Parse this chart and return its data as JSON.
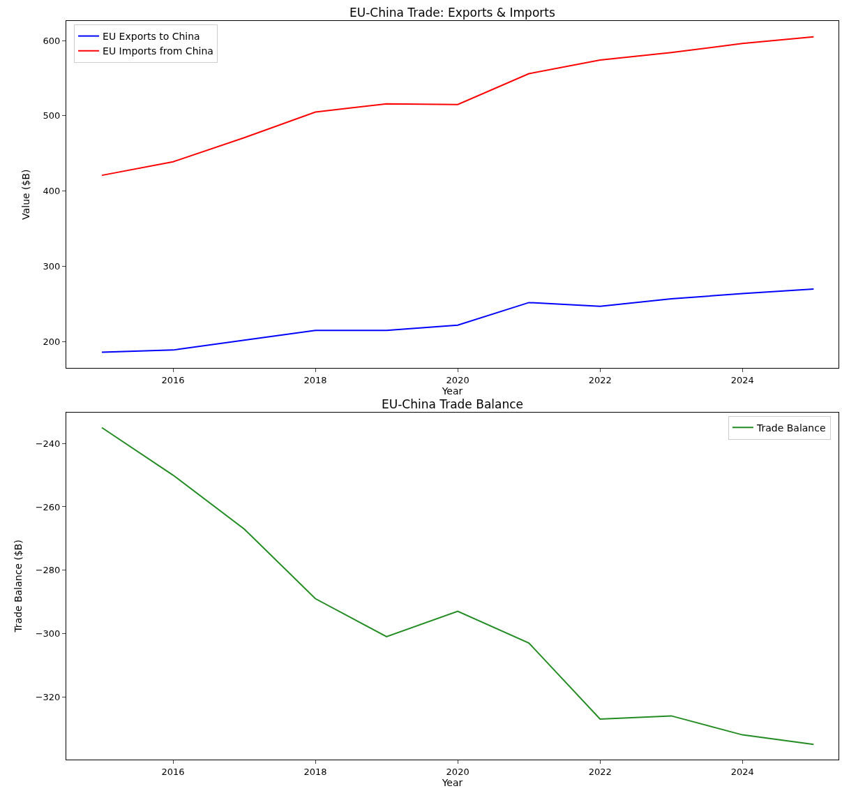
{
  "chart_data": [
    {
      "type": "line",
      "title": "EU-China Trade: Exports & Imports",
      "xlabel": "Year",
      "ylabel": "Value ($B)",
      "x": [
        2015,
        2016,
        2017,
        2018,
        2019,
        2020,
        2021,
        2022,
        2023,
        2024,
        2025
      ],
      "series": [
        {
          "name": "EU Exports to China",
          "color": "#0000ff",
          "values": [
            186,
            189,
            202,
            215,
            215,
            222,
            252,
            247,
            257,
            264,
            270
          ]
        },
        {
          "name": "EU Imports from China",
          "color": "#ff0000",
          "values": [
            421,
            439,
            471,
            505,
            516,
            515,
            556,
            574,
            584,
            596,
            605
          ]
        }
      ],
      "xlim": [
        2014.5,
        2025.35
      ],
      "ylim": [
        165,
        626
      ],
      "xticks": [
        2016,
        2018,
        2020,
        2022,
        2024
      ],
      "yticks": [
        200,
        300,
        400,
        500,
        600
      ],
      "legend": "top left"
    },
    {
      "type": "line",
      "title": "EU-China Trade Balance",
      "xlabel": "Year",
      "ylabel": "Trade Balance ($B)",
      "x": [
        2015,
        2016,
        2017,
        2018,
        2019,
        2020,
        2021,
        2022,
        2023,
        2024,
        2025
      ],
      "series": [
        {
          "name": "Trade Balance",
          "color": "#228b22",
          "values": [
            -235,
            -250,
            -267,
            -289,
            -301,
            -293,
            -303,
            -327,
            -326,
            -332,
            -335
          ]
        }
      ],
      "xlim": [
        2014.5,
        2025.35
      ],
      "ylim": [
        -339.8,
        -230.2
      ],
      "xticks": [
        2016,
        2018,
        2020,
        2022,
        2024
      ],
      "yticks": [
        {
          "value": -240,
          "label": "−240"
        },
        {
          "value": -260,
          "label": "−260"
        },
        {
          "value": -280,
          "label": "−280"
        },
        {
          "value": -300,
          "label": "−300"
        },
        {
          "value": -320,
          "label": "−320"
        }
      ],
      "legend": "top right"
    }
  ]
}
